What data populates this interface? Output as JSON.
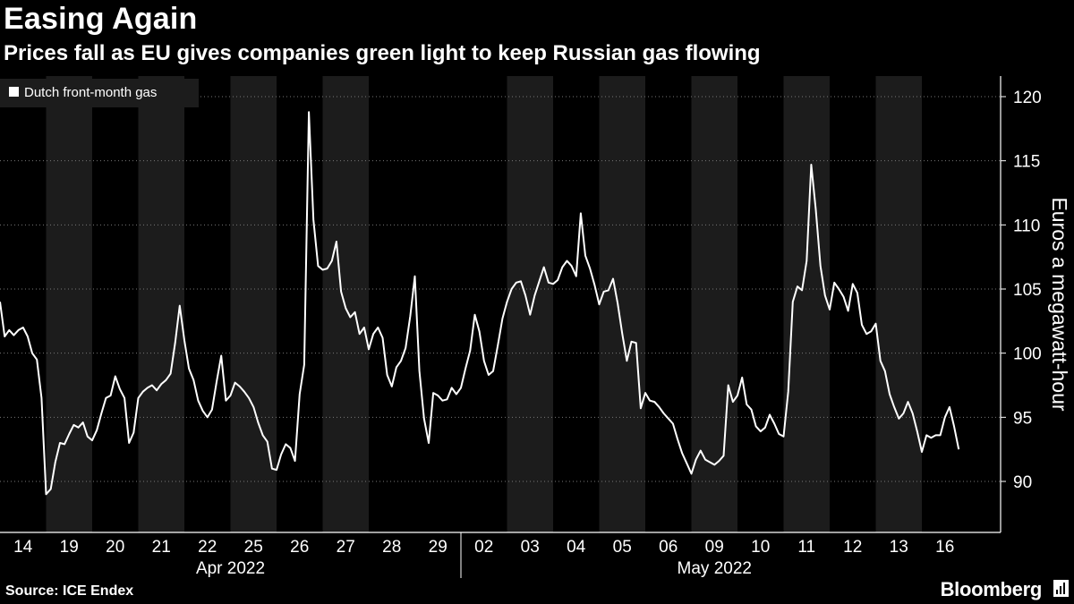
{
  "header": {
    "title": "Easing Again",
    "subtitle": "Prices fall as EU gives companies green light to keep Russian gas flowing"
  },
  "footer": {
    "source": "Source: ICE Endex",
    "brand": "Bloomberg",
    "brand_icon": "bloomberg-terminal-icon"
  },
  "colors": {
    "background": "#000000",
    "band": "#1c1c1c",
    "line": "#ffffff",
    "grid": "#777777",
    "text": "#ffffff"
  },
  "chart_data": {
    "type": "line",
    "title": "Easing Again",
    "subtitle": "Prices fall as EU gives companies green light to keep Russian gas flowing",
    "xlabel": "",
    "ylabel": "Euros a megawatt-hour",
    "ylim": [
      87,
      122
    ],
    "yticks": [
      90,
      95,
      100,
      105,
      110,
      115,
      120
    ],
    "grid": true,
    "legend": {
      "position": "top-left",
      "entries": [
        "Dutch front-month gas"
      ]
    },
    "days": [
      "14",
      "19",
      "20",
      "21",
      "22",
      "25",
      "26",
      "27",
      "28",
      "29",
      "02",
      "03",
      "04",
      "05",
      "06",
      "09",
      "10",
      "11",
      "12",
      "13",
      "16"
    ],
    "shaded_days": [
      1,
      3,
      5,
      7,
      11,
      13,
      15,
      17,
      19
    ],
    "month_labels": [
      {
        "label": "Apr 2022",
        "first_day": 0,
        "last_day": 9
      },
      {
        "label": "May 2022",
        "first_day": 10,
        "last_day": 20
      }
    ],
    "series": [
      {
        "name": "Dutch front-month gas",
        "x": [
          0,
          0.1,
          0.2,
          0.3,
          0.4,
          0.5,
          0.6,
          0.7,
          0.8,
          0.9,
          1,
          1.1,
          1.2,
          1.3,
          1.4,
          1.5,
          1.6,
          1.7,
          1.8,
          1.9,
          2,
          2.1,
          2.2,
          2.3,
          2.4,
          2.5,
          2.6,
          2.7,
          2.8,
          2.9,
          3,
          3.1,
          3.2,
          3.3,
          3.4,
          3.5,
          3.6,
          3.7,
          3.8,
          3.9,
          4,
          4.1,
          4.2,
          4.3,
          4.4,
          4.5,
          4.6,
          4.7,
          4.8,
          4.9,
          5,
          5.1,
          5.2,
          5.3,
          5.4,
          5.5,
          5.6,
          5.7,
          5.8,
          5.9,
          6,
          6.1,
          6.2,
          6.3,
          6.4,
          6.5,
          6.6,
          6.7,
          6.8,
          6.9,
          7,
          7.1,
          7.2,
          7.3,
          7.4,
          7.5,
          7.6,
          7.7,
          7.8,
          7.9,
          8,
          8.1,
          8.2,
          8.3,
          8.4,
          8.5,
          8.6,
          8.7,
          8.8,
          8.9,
          9,
          9.1,
          9.2,
          9.3,
          9.4,
          9.5,
          9.6,
          9.7,
          9.8,
          9.9,
          10,
          10.1,
          10.2,
          10.3,
          10.4,
          10.5,
          10.6,
          10.7,
          10.8,
          10.9,
          11,
          11.1,
          11.2,
          11.3,
          11.4,
          11.5,
          11.6,
          11.7,
          11.8,
          11.9,
          12,
          12.1,
          12.2,
          12.3,
          12.4,
          12.5,
          12.6,
          12.7,
          12.8,
          12.9,
          13,
          13.1,
          13.2,
          13.3,
          13.4,
          13.5,
          13.6,
          13.7,
          13.8,
          13.9,
          14,
          14.1,
          14.2,
          14.3,
          14.4,
          14.5,
          14.6,
          14.7,
          14.8,
          14.9,
          15,
          15.1,
          15.2,
          15.3,
          15.4,
          15.5,
          15.6,
          15.7,
          15.8,
          15.9,
          16,
          16.1,
          16.2,
          16.3,
          16.4,
          16.5,
          16.6,
          16.7,
          16.8,
          16.9,
          17,
          17.1,
          17.2,
          17.3,
          17.4,
          17.5,
          17.6,
          17.7,
          17.8,
          17.9,
          18,
          18.1,
          18.2,
          18.3,
          18.4,
          18.5,
          18.6,
          18.7,
          18.8,
          18.9,
          19,
          19.1,
          19.2,
          19.3,
          19.4,
          19.5,
          19.6,
          19.7,
          19.8,
          19.9,
          20,
          20.1,
          20.2,
          20.3,
          20.4,
          20.5,
          20.6,
          20.7,
          20.8
        ],
        "values": [
          104,
          101.3,
          101.8,
          101.4,
          101.8,
          102,
          101.3,
          100,
          99.5,
          96.5,
          89,
          89.4,
          91.5,
          93,
          92.9,
          93.7,
          94.4,
          94.2,
          94.6,
          93.5,
          93.2,
          94,
          95.3,
          96.5,
          96.7,
          98.2,
          97.2,
          96.5,
          93,
          93.8,
          96.5,
          97,
          97.3,
          97.5,
          97.1,
          97.6,
          97.9,
          98.4,
          100.8,
          103.7,
          101,
          98.8,
          97.9,
          96.3,
          95.5,
          95,
          95.6,
          97.8,
          99.8,
          96.3,
          96.7,
          97.7,
          97.4,
          97,
          96.5,
          95.8,
          94.6,
          93.6,
          93.1,
          91,
          90.9,
          92.1,
          92.9,
          92.6,
          91.6,
          96.8,
          99.1,
          118.8,
          110.4,
          106.8,
          106.5,
          106.6,
          107.2,
          108.7,
          104.8,
          103.5,
          102.8,
          103.2,
          101.5,
          102,
          100.3,
          101.5,
          102,
          101.2,
          98.3,
          97.4,
          98.9,
          99.4,
          100.4,
          102.9,
          106,
          98.6,
          94.9,
          93,
          96.9,
          96.7,
          96.3,
          96.4,
          97.3,
          96.8,
          97.3,
          98.8,
          100.2,
          103,
          101.7,
          99.4,
          98.3,
          98.6,
          100.6,
          102.7,
          104,
          105,
          105.5,
          105.6,
          104.5,
          103,
          104.5,
          105.6,
          106.7,
          105.5,
          105.4,
          105.7,
          106.7,
          107.2,
          106.8,
          106,
          110.9,
          107.6,
          106.6,
          105.3,
          103.8,
          104.8,
          104.9,
          105.8,
          103.9,
          101.5,
          99.4,
          100.9,
          100.8,
          95.7,
          96.9,
          96.3,
          96.2,
          95.8,
          95.3,
          94.9,
          94.5,
          93.3,
          92.2,
          91.4,
          90.6,
          91.7,
          92.4,
          91.7,
          91.5,
          91.3,
          91.6,
          92,
          97.5,
          96.2,
          96.7,
          98.1,
          96,
          95.6,
          94.3,
          93.9,
          94.2,
          95.2,
          94.5,
          93.7,
          93.5,
          97,
          104,
          105.2,
          104.9,
          107.2,
          114.7,
          111.2,
          106.8,
          104.5,
          103.4,
          105.5,
          105,
          104.4,
          103.3,
          105.4,
          104.7,
          102.2,
          101.5,
          101.7,
          102.3,
          99.4,
          98.6,
          96.8,
          95.8,
          94.9,
          95.3,
          96.2,
          95.3,
          93.9,
          92.3,
          93.6,
          93.4,
          93.6,
          93.6,
          95,
          95.8,
          94.3,
          92.5
        ]
      }
    ]
  }
}
